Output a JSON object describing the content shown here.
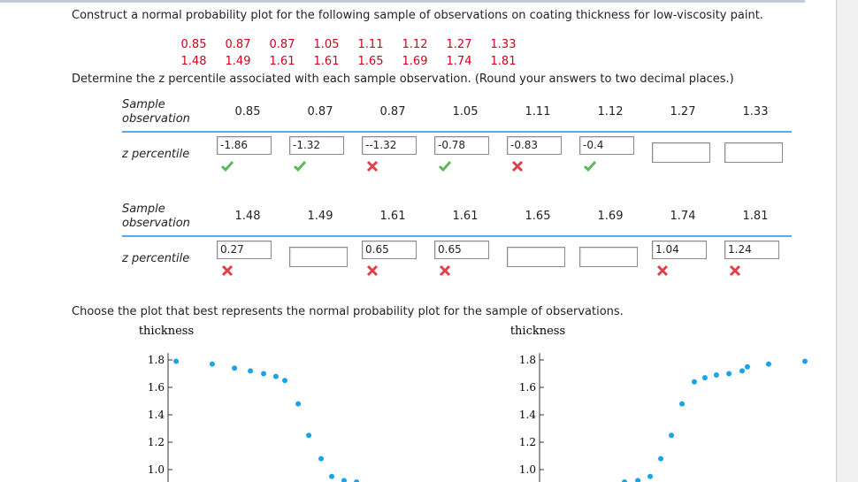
{
  "question": "Construct a normal probability plot for the following sample of observations on coating thickness for low-viscosity paint.",
  "observations": [
    [
      0.85,
      0.87,
      0.87,
      1.05,
      1.11,
      1.12,
      1.27,
      1.33
    ],
    [
      1.48,
      1.49,
      1.61,
      1.61,
      1.65,
      1.69,
      1.74,
      1.81
    ]
  ],
  "instruction": "Determine the z percentile associated with each sample observation. (Round your answers to two decimal places.)",
  "table": {
    "groups": [
      {
        "sample_label": "Sample observation",
        "z_label": "z percentile",
        "samples": [
          0.85,
          0.87,
          0.87,
          1.05,
          1.11,
          1.12,
          1.27,
          1.33
        ],
        "answers": [
          "-1.86",
          "-1.32",
          "--1.32",
          "-0.78",
          "-0.83",
          "-0.4",
          null,
          null
        ],
        "status": [
          "correct",
          "correct",
          "incorrect",
          "correct",
          "incorrect",
          "correct",
          null,
          null
        ]
      },
      {
        "sample_label": "Sample observation",
        "z_label": "z percentile",
        "samples": [
          1.48,
          1.49,
          1.61,
          1.61,
          1.65,
          1.69,
          1.74,
          1.81
        ],
        "answers": [
          "0.27",
          null,
          "0.65",
          "0.65",
          null,
          null,
          "1.04",
          "1.24"
        ],
        "status": [
          "incorrect",
          null,
          "incorrect",
          "incorrect",
          null,
          null,
          "incorrect",
          "incorrect"
        ]
      }
    ]
  },
  "choose": "Choose the plot that best represents the normal probability plot for the sample of observations.",
  "plots": [
    {
      "type": "scatter",
      "ylabel": "thickness",
      "color": "#1aa3e8",
      "xlim": [
        0,
        13.75
      ],
      "ylim": [
        0.9,
        1.85
      ],
      "yticks": [
        {
          "value": 1.8,
          "label": "1.8"
        },
        {
          "value": 1.6,
          "label": "1.6"
        },
        {
          "value": 1.4,
          "label": "1.4"
        },
        {
          "value": 1.2,
          "label": "1.2"
        },
        {
          "value": 1,
          "label": "1.0"
        }
      ],
      "x": [
        0.38,
        2.08,
        3.13,
        3.88,
        4.5,
        5.08,
        5.5,
        6.13,
        6.63,
        7.21,
        7.71,
        8.29,
        8.88
      ],
      "y": [
        1.79,
        1.77,
        1.74,
        1.72,
        1.7,
        1.68,
        1.65,
        1.48,
        1.25,
        1.08,
        0.95,
        0.92,
        0.91
      ]
    },
    {
      "type": "scatter",
      "ylabel": "thickness",
      "color": "#1aa3e8",
      "xlim": [
        0,
        13.75
      ],
      "ylim": [
        0.9,
        1.85
      ],
      "yticks": [
        {
          "value": 1.8,
          "label": "1.8"
        },
        {
          "value": 1.6,
          "label": "1.6"
        },
        {
          "value": 1.4,
          "label": "1.4"
        },
        {
          "value": 1.2,
          "label": "1.2"
        },
        {
          "value": 1,
          "label": "1.0"
        }
      ],
      "x": [
        4,
        4.63,
        5.21,
        5.71,
        6.21,
        6.71,
        7.29,
        7.79,
        8.33,
        8.92,
        9.54,
        9.79,
        10.79,
        12.5
      ],
      "y": [
        0.91,
        0.92,
        0.95,
        1.08,
        1.25,
        1.48,
        1.64,
        1.67,
        1.69,
        1.7,
        1.72,
        1.75,
        1.77,
        1.79
      ]
    }
  ]
}
